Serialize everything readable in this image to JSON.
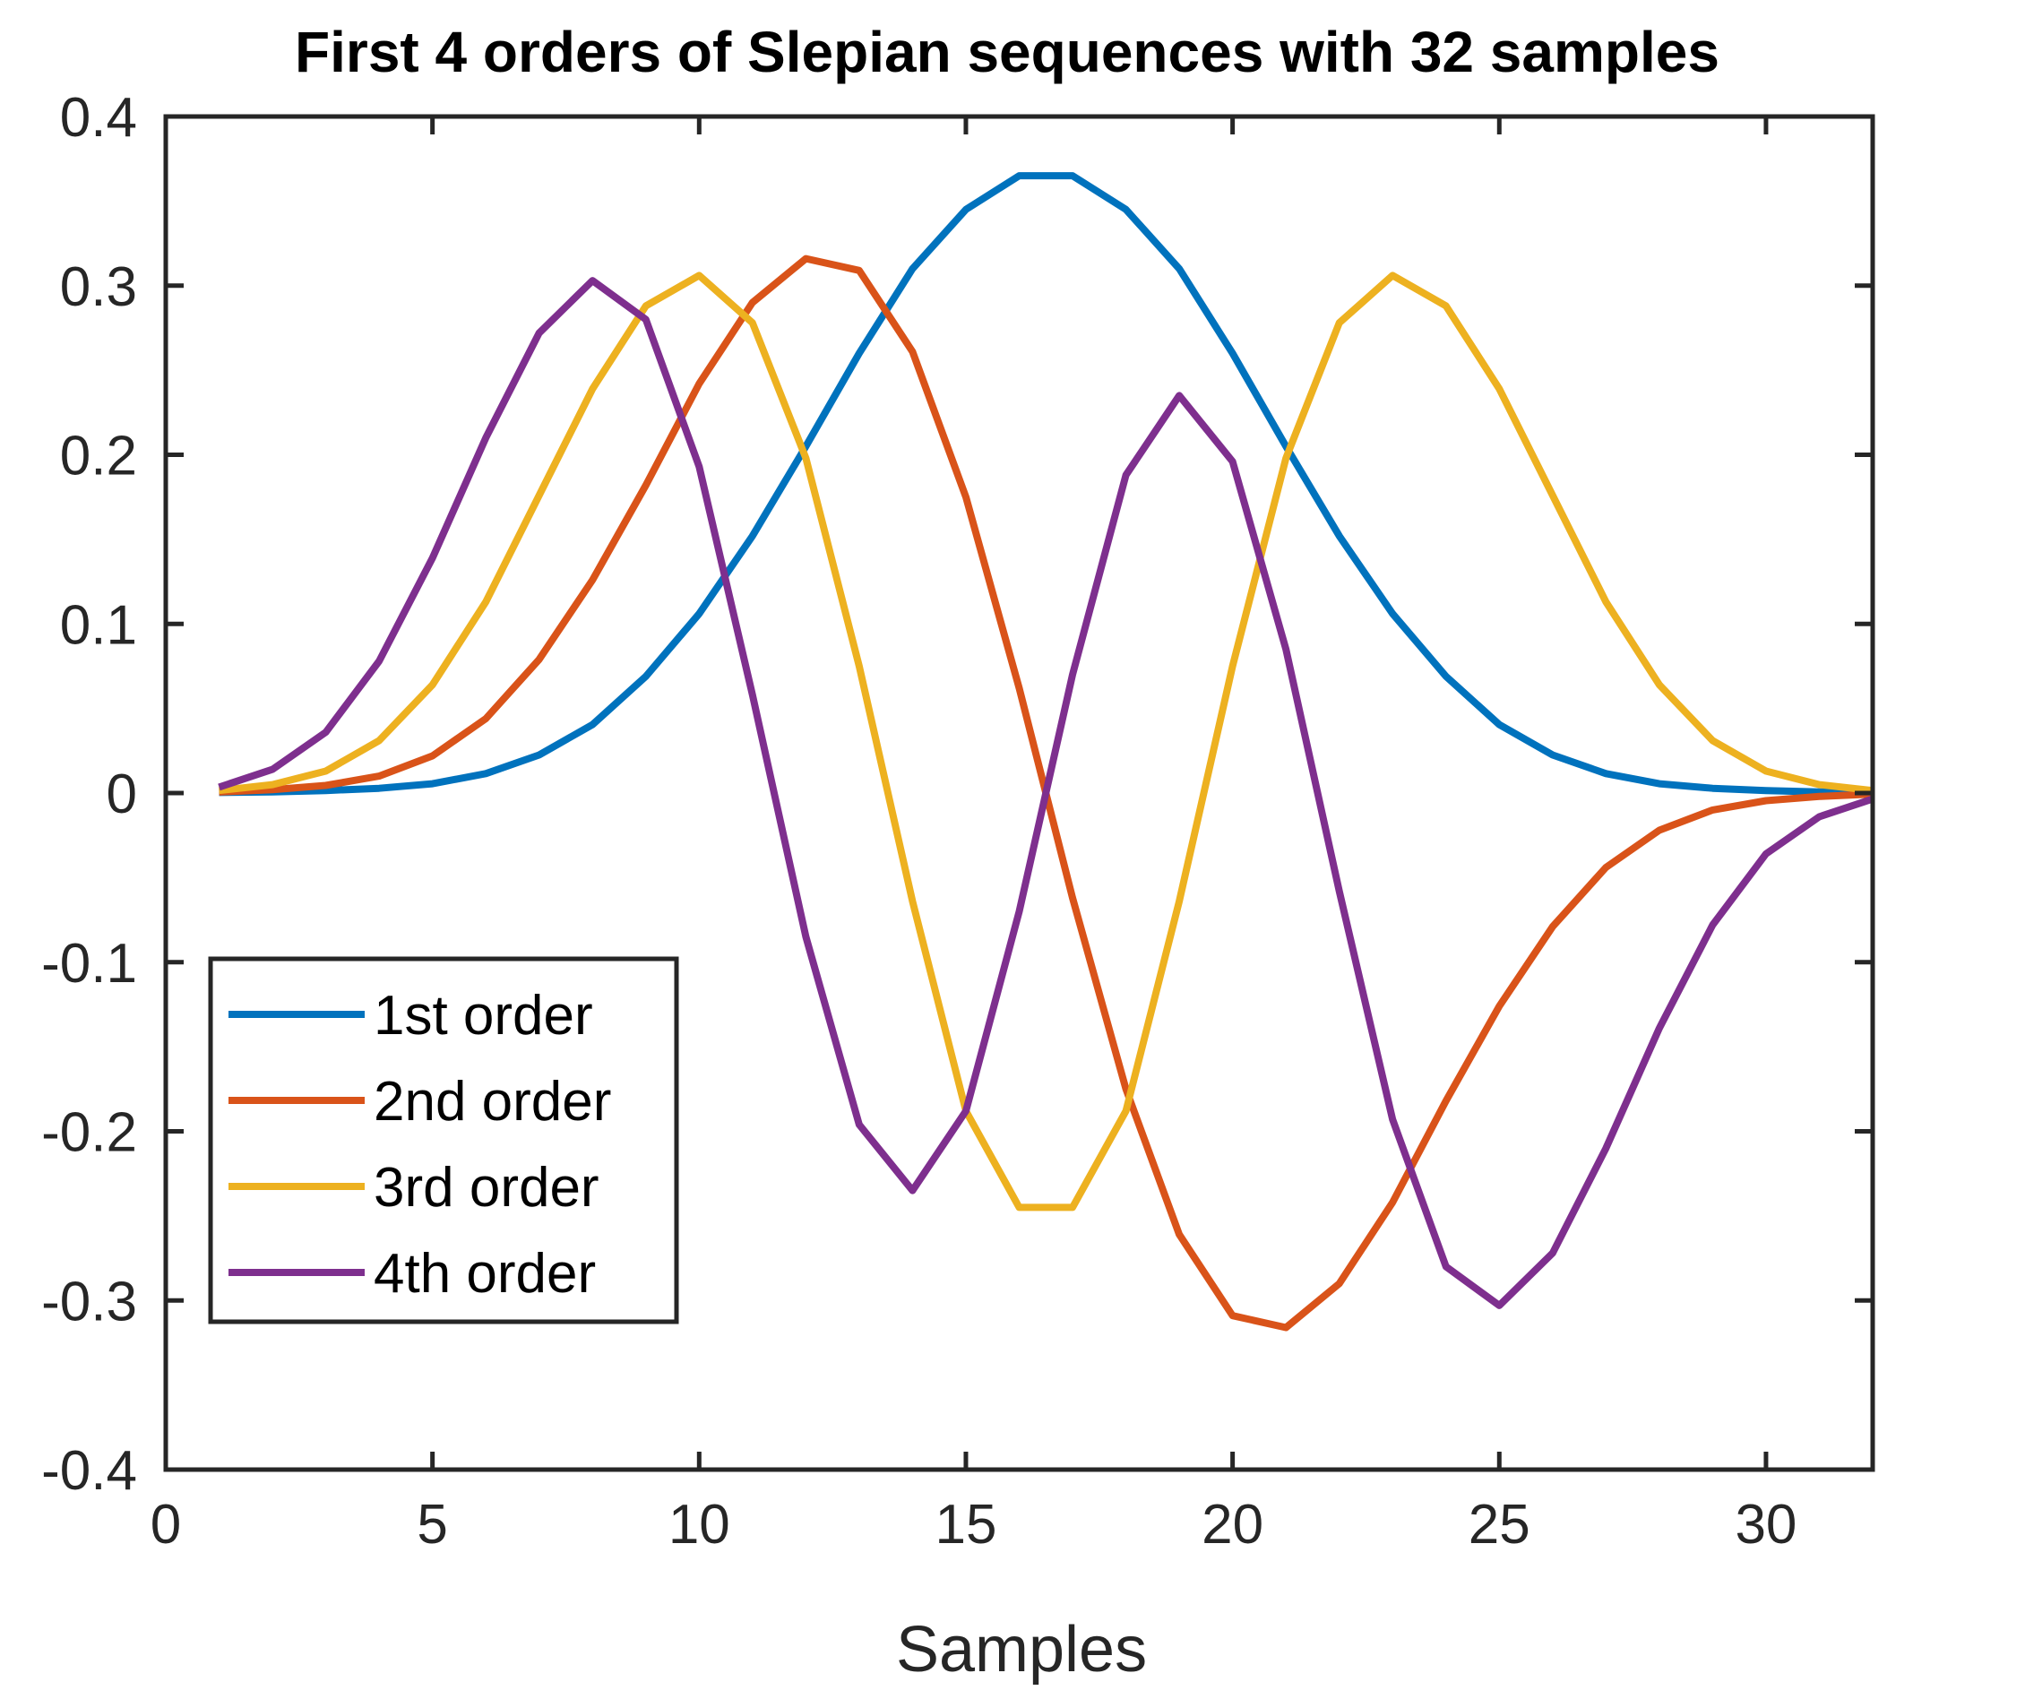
{
  "chart_data": {
    "type": "line",
    "title": "First 4 orders of Slepian sequences with 32 samples",
    "xlabel": "Samples",
    "ylabel": "",
    "xlim": [
      0,
      32
    ],
    "ylim": [
      -0.4,
      0.4
    ],
    "xticks": [
      0,
      5,
      10,
      15,
      20,
      25,
      30
    ],
    "xtick_labels": [
      "0",
      "5",
      "10",
      "15",
      "20",
      "25",
      "30"
    ],
    "yticks": [
      0.4,
      0.3,
      0.2,
      0.1,
      0,
      -0.1,
      -0.2,
      -0.3,
      -0.4
    ],
    "ytick_labels": [
      "0.4",
      "0.3",
      "0.2",
      "0.1",
      "0",
      "-0.1",
      "-0.2",
      "-0.3",
      "-0.4"
    ],
    "grid": false,
    "legend_position": "lower-left",
    "x": [
      1,
      2,
      3,
      4,
      5,
      6,
      7,
      8,
      9,
      10,
      11,
      12,
      13,
      14,
      15,
      16,
      17,
      18,
      19,
      20,
      21,
      22,
      23,
      24,
      25,
      26,
      27,
      28,
      29,
      30,
      31,
      32
    ],
    "series": [
      {
        "name": "1st order",
        "color": "#0072BD",
        "values": [
          0.0003,
          0.0007,
          0.0015,
          0.0028,
          0.0055,
          0.0115,
          0.0225,
          0.0405,
          0.069,
          0.106,
          0.152,
          0.205,
          0.26,
          0.31,
          0.345,
          0.365,
          0.365,
          0.345,
          0.31,
          0.26,
          0.205,
          0.152,
          0.106,
          0.069,
          0.0405,
          0.0225,
          0.0115,
          0.0055,
          0.0028,
          0.0015,
          0.0007,
          0.0003
        ]
      },
      {
        "name": "2nd order",
        "color": "#D95319",
        "values": [
          0.0006,
          0.002,
          0.0045,
          0.01,
          0.022,
          0.044,
          0.079,
          0.126,
          0.182,
          0.242,
          0.29,
          0.316,
          0.309,
          0.261,
          0.175,
          0.062,
          -0.062,
          -0.175,
          -0.261,
          -0.309,
          -0.316,
          -0.29,
          -0.242,
          -0.182,
          -0.126,
          -0.079,
          -0.044,
          -0.022,
          -0.01,
          -0.0045,
          -0.002,
          -0.0006
        ]
      },
      {
        "name": "3rd order",
        "color": "#EDB120",
        "values": [
          0.0015,
          0.005,
          0.013,
          0.031,
          0.064,
          0.113,
          0.176,
          0.239,
          0.288,
          0.306,
          0.278,
          0.198,
          0.075,
          -0.064,
          -0.188,
          -0.245,
          -0.245,
          -0.188,
          -0.064,
          0.075,
          0.198,
          0.278,
          0.306,
          0.288,
          0.239,
          0.176,
          0.113,
          0.064,
          0.031,
          0.013,
          0.005,
          0.0015
        ]
      },
      {
        "name": "4th order",
        "color": "#7E2F8E",
        "values": [
          0.0035,
          0.014,
          0.036,
          0.078,
          0.139,
          0.21,
          0.272,
          0.303,
          0.28,
          0.193,
          0.058,
          -0.085,
          -0.196,
          -0.235,
          -0.188,
          -0.07,
          0.07,
          0.188,
          0.235,
          0.196,
          0.085,
          -0.058,
          -0.193,
          -0.28,
          -0.303,
          -0.272,
          -0.21,
          -0.139,
          -0.078,
          -0.036,
          -0.014,
          -0.0035
        ]
      }
    ]
  }
}
